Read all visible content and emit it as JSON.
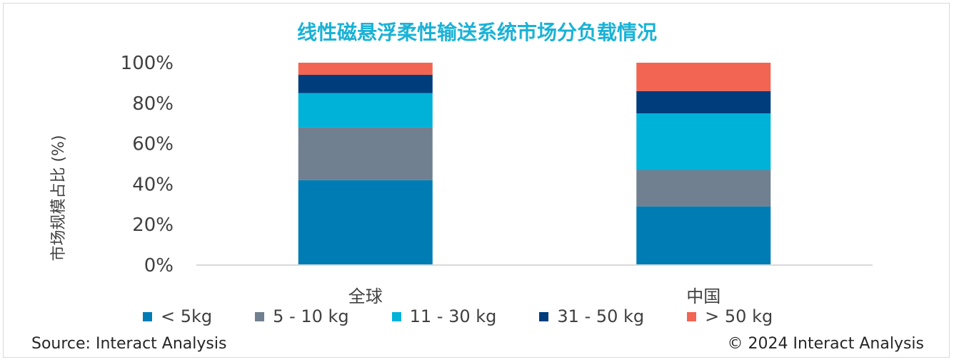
{
  "title": "线性磁悬浮柔性输送系统市场分负载情况",
  "source": "Source: Interact Analysis",
  "copyright": "© 2024 Interact Analysis",
  "chart_data": {
    "type": "bar",
    "stacked": true,
    "title": "线性磁悬浮柔性输送系统市场分负载情况",
    "xlabel": "",
    "ylabel": "市场规模占比 (%)",
    "ylim": [
      0,
      100
    ],
    "yticks": [
      "0%",
      "20%",
      "40%",
      "60%",
      "80%",
      "100%"
    ],
    "categories": [
      "全球",
      "中国"
    ],
    "series": [
      {
        "name": "< 5kg",
        "color": "#007cb5",
        "values": [
          42,
          29
        ]
      },
      {
        "name": "5 - 10 kg",
        "color": "#708090",
        "values": [
          26,
          18
        ]
      },
      {
        "name": "11 - 30 kg",
        "color": "#00b1d8",
        "values": [
          17,
          28
        ]
      },
      {
        "name": "31 - 50 kg",
        "color": "#003d7d",
        "values": [
          9,
          11
        ]
      },
      {
        "name": "> 50 kg",
        "color": "#f26552",
        "values": [
          6,
          14
        ]
      }
    ],
    "gridlines": false,
    "legend_position": "bottom"
  }
}
